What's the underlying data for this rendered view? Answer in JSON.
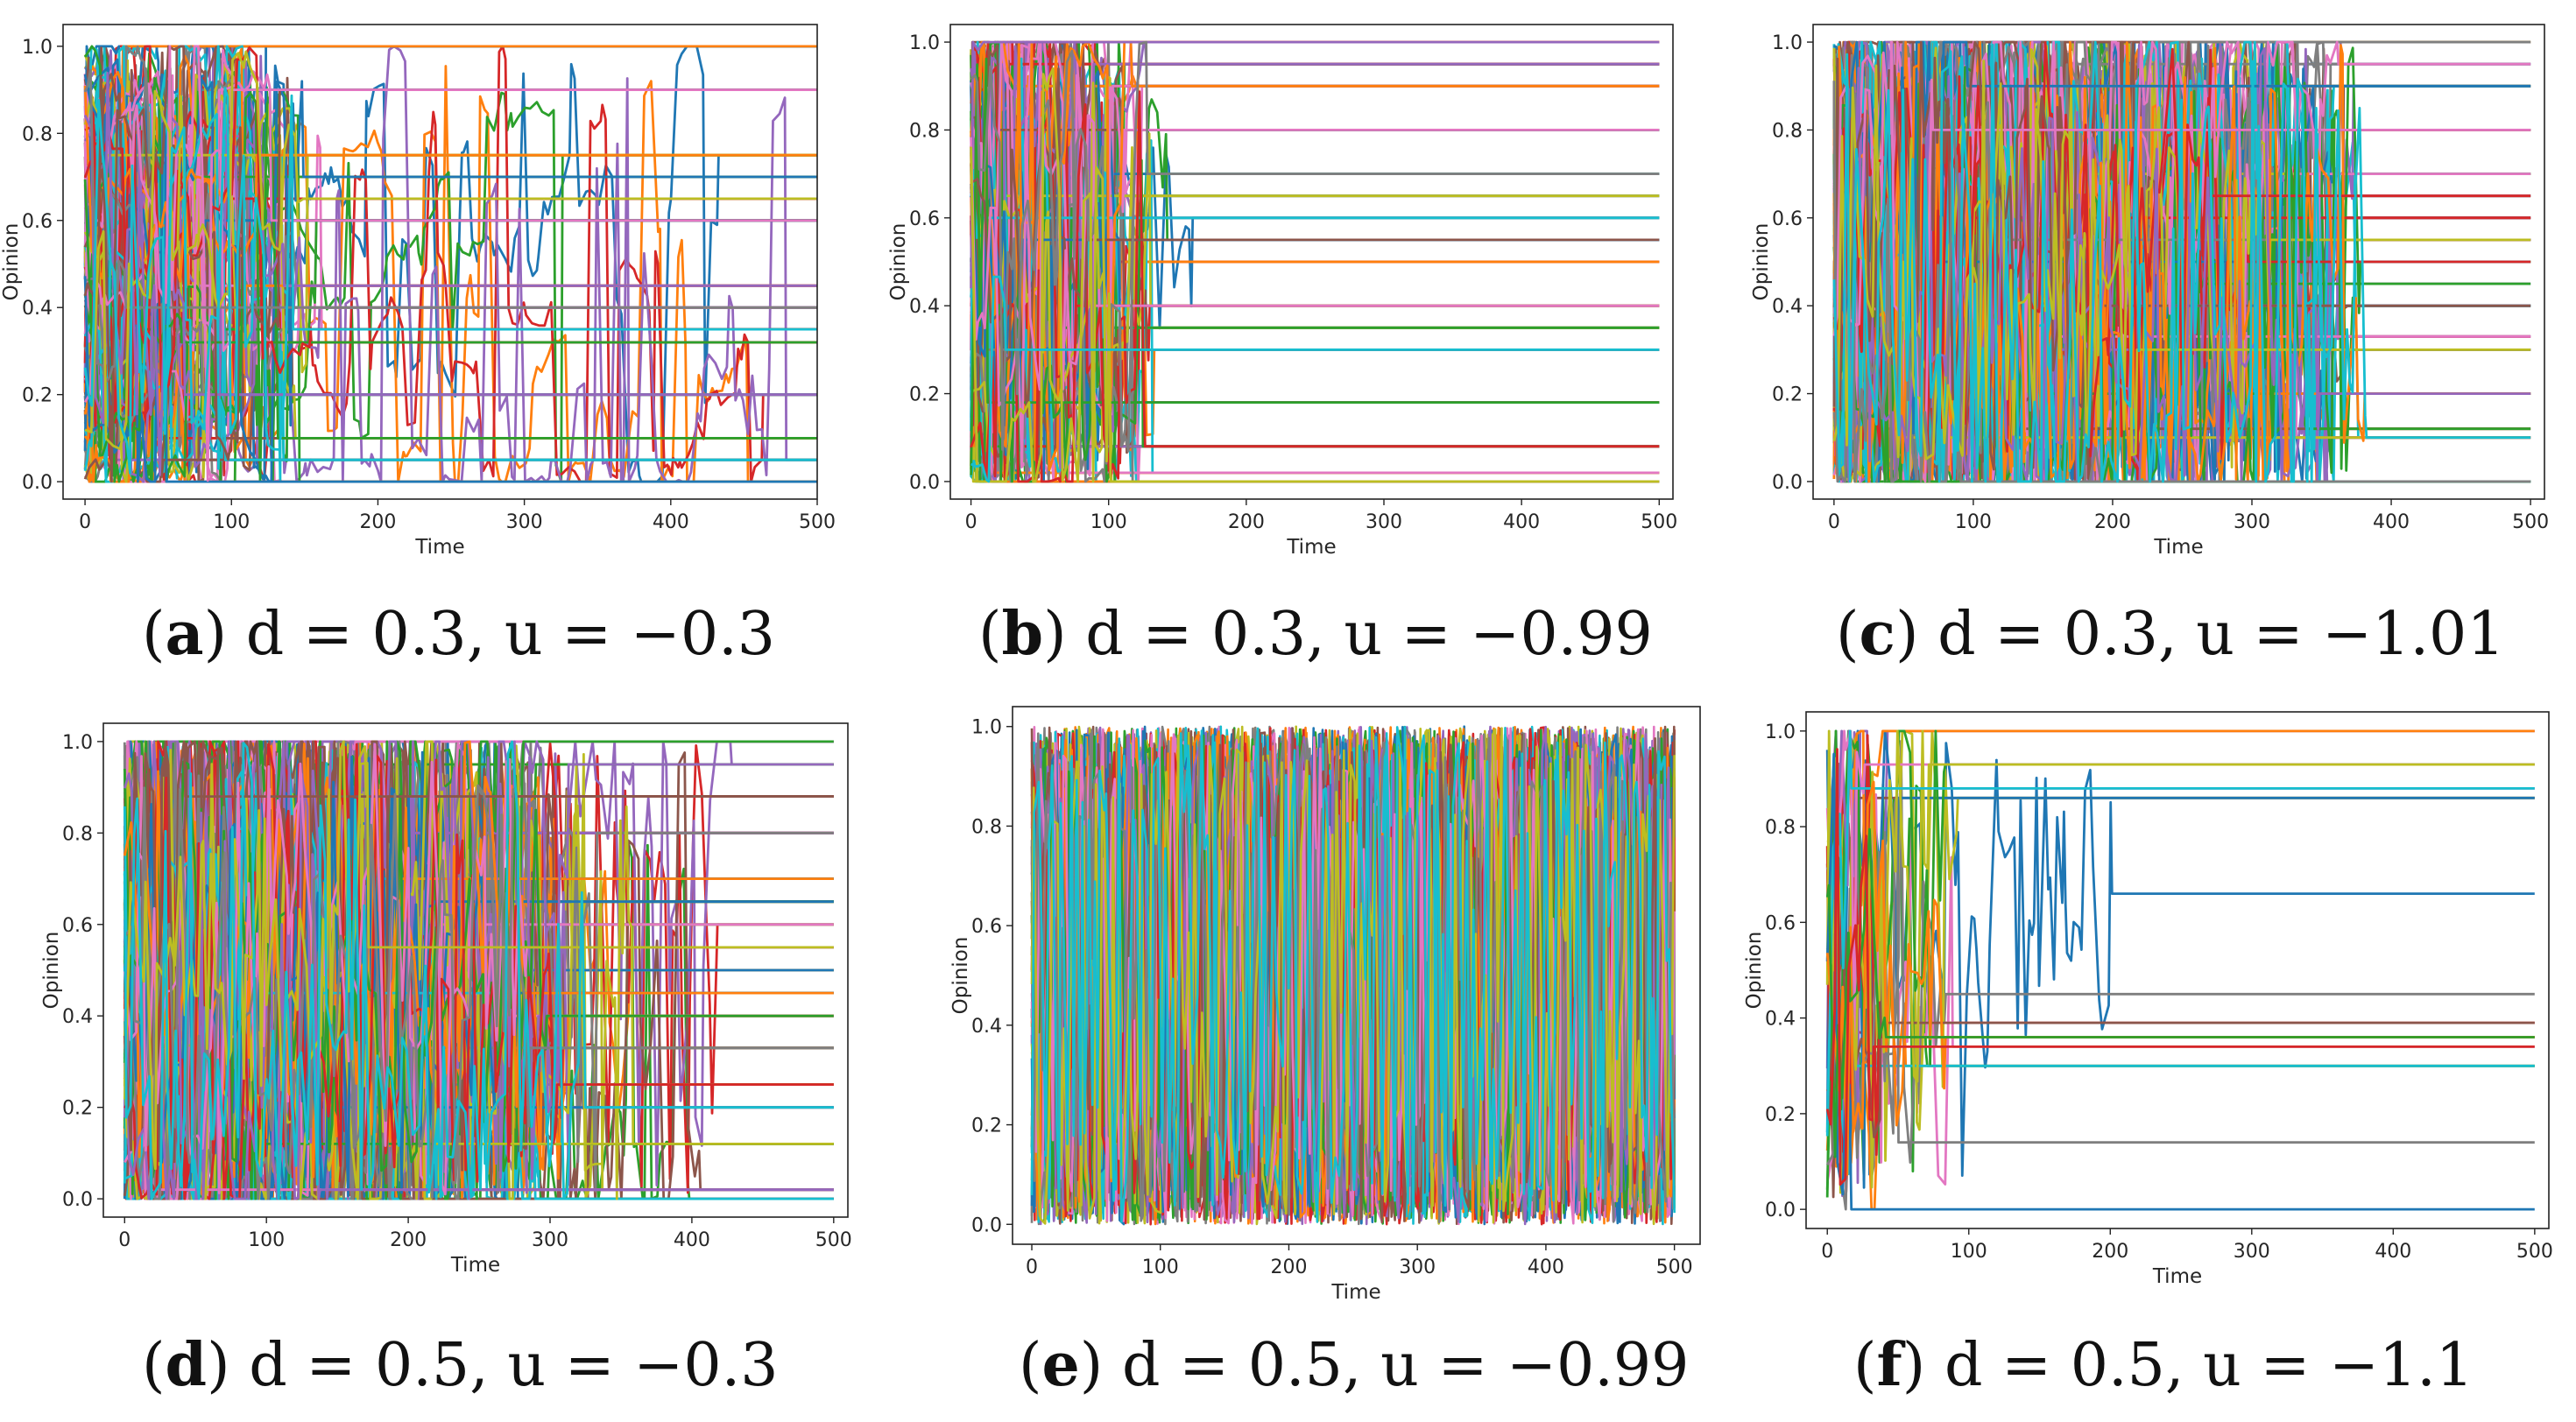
{
  "figure": {
    "panels_note": "six opinion-dynamics simulation panels"
  },
  "chart_data": [
    {
      "id": "a",
      "type": "line",
      "letter": "a",
      "caption_text": "d = 0.3, u = −0.3",
      "d": 0.3,
      "u": -0.3,
      "xlabel": "Time",
      "ylabel": "Opinion",
      "xlim": [
        -15,
        500
      ],
      "ylim": [
        -0.04,
        1.05
      ],
      "xticks": [
        "0",
        "100",
        "200",
        "300",
        "400",
        "500"
      ],
      "yticks": [
        "0.0",
        "0.2",
        "0.4",
        "0.6",
        "0.8",
        "1.0"
      ],
      "xtick_values": [
        0,
        100,
        200,
        300,
        400,
        500
      ],
      "ytick_values": [
        0.0,
        0.2,
        0.4,
        0.6,
        0.8,
        1.0
      ],
      "agents": 120,
      "settle_time": 160,
      "volatility": 0.35,
      "clusters": [
        0.0,
        0.05,
        0.1,
        0.2,
        0.32,
        0.35,
        0.4,
        0.45,
        0.6,
        0.65,
        0.7,
        0.75,
        0.9,
        1.0
      ],
      "late_movers": 5,
      "late_end": 500
    },
    {
      "id": "b",
      "type": "line",
      "letter": "b",
      "caption_text": "d = 0.3, u = −0.99",
      "d": 0.3,
      "u": -0.99,
      "xlabel": "Time",
      "ylabel": "Opinion",
      "xlim": [
        -15,
        510
      ],
      "ylim": [
        -0.04,
        1.04
      ],
      "xticks": [
        "0",
        "100",
        "200",
        "300",
        "400",
        "500"
      ],
      "yticks": [
        "0.0",
        "0.2",
        "0.4",
        "0.6",
        "0.8",
        "1.0"
      ],
      "xtick_values": [
        0,
        100,
        200,
        300,
        400,
        500
      ],
      "ytick_values": [
        0.0,
        0.2,
        0.4,
        0.6,
        0.8,
        1.0
      ],
      "agents": 110,
      "settle_time": 130,
      "volatility": 0.6,
      "clusters": [
        0.0,
        0.02,
        0.08,
        0.18,
        0.3,
        0.35,
        0.4,
        0.5,
        0.55,
        0.6,
        0.65,
        0.7,
        0.8,
        0.9,
        0.95,
        1.0
      ],
      "late_movers": 4,
      "late_end": 160
    },
    {
      "id": "c",
      "type": "line",
      "letter": "c",
      "caption_text": "d = 0.3, u = −1.01",
      "d": 0.3,
      "u": -1.01,
      "xlabel": "Time",
      "ylabel": "Opinion",
      "xlim": [
        -15,
        510
      ],
      "ylim": [
        -0.04,
        1.04
      ],
      "xticks": [
        "0",
        "100",
        "200",
        "300",
        "400",
        "500"
      ],
      "yticks": [
        "0.0",
        "0.2",
        "0.4",
        "0.6",
        "0.8",
        "1.0"
      ],
      "xtick_values": [
        0,
        100,
        200,
        300,
        400,
        500
      ],
      "ytick_values": [
        0.0,
        0.2,
        0.4,
        0.6,
        0.8,
        1.0
      ],
      "agents": 130,
      "settle_time": 380,
      "volatility": 0.85,
      "clusters": [
        0.0,
        0.1,
        0.12,
        0.2,
        0.3,
        0.33,
        0.4,
        0.45,
        0.5,
        0.55,
        0.6,
        0.65,
        0.7,
        0.8,
        0.9,
        0.95,
        1.0
      ],
      "late_movers": 6,
      "late_end": 460
    },
    {
      "id": "d",
      "type": "line",
      "letter": "d",
      "caption_text": "d = 0.5, u = −0.3",
      "d": 0.5,
      "u": -0.3,
      "xlabel": "Time",
      "ylabel": "Opinion",
      "xlim": [
        -15,
        510
      ],
      "ylim": [
        -0.04,
        1.04
      ],
      "xticks": [
        "0",
        "100",
        "200",
        "300",
        "400",
        "500"
      ],
      "yticks": [
        "0.0",
        "0.2",
        "0.4",
        "0.6",
        "0.8",
        "1.0"
      ],
      "xtick_values": [
        0,
        100,
        200,
        300,
        400,
        500
      ],
      "ytick_values": [
        0.0,
        0.2,
        0.4,
        0.6,
        0.8,
        1.0
      ],
      "agents": 130,
      "settle_time": 360,
      "volatility": 0.85,
      "clusters": [
        0.0,
        0.02,
        0.12,
        0.2,
        0.25,
        0.33,
        0.4,
        0.45,
        0.5,
        0.55,
        0.6,
        0.65,
        0.7,
        0.8,
        0.88,
        0.95,
        1.0
      ],
      "late_movers": 6,
      "late_end": 460
    },
    {
      "id": "e",
      "type": "line",
      "letter": "e",
      "caption_text": "d = 0.5, u = −0.99",
      "d": 0.5,
      "u": -0.99,
      "xlabel": "Time",
      "ylabel": "Opinion",
      "xlim": [
        -15,
        520
      ],
      "ylim": [
        -0.04,
        1.04
      ],
      "xticks": [
        "0",
        "100",
        "200",
        "300",
        "400",
        "500"
      ],
      "yticks": [
        "0.0",
        "0.2",
        "0.4",
        "0.6",
        "0.8",
        "1.0"
      ],
      "xtick_values": [
        0,
        100,
        200,
        300,
        400,
        500
      ],
      "ytick_values": [
        0.0,
        0.2,
        0.4,
        0.6,
        0.8,
        1.0
      ],
      "agents": 60,
      "settle_time": 500,
      "volatility": 1.0,
      "clusters": [
        0.0,
        1.0
      ],
      "late_movers": 0,
      "late_end": 500,
      "chaotic": true
    },
    {
      "id": "f",
      "type": "line",
      "letter": "f",
      "caption_text": "d = 0.5, u = −1.1",
      "d": 0.5,
      "u": -1.1,
      "xlabel": "Time",
      "ylabel": "Opinion",
      "xlim": [
        -15,
        510
      ],
      "ylim": [
        -0.04,
        1.04
      ],
      "xticks": [
        "0",
        "100",
        "200",
        "300",
        "400",
        "500"
      ],
      "yticks": [
        "0.0",
        "0.2",
        "0.4",
        "0.6",
        "0.8",
        "1.0"
      ],
      "xtick_values": [
        0,
        100,
        200,
        300,
        400,
        500
      ],
      "ytick_values": [
        0.0,
        0.2,
        0.4,
        0.6,
        0.8,
        1.0
      ],
      "agents": 24,
      "settle_time": 90,
      "volatility": 0.9,
      "clusters": [
        0.0,
        0.08,
        0.14,
        0.3,
        0.34,
        0.36,
        0.39,
        0.45,
        0.66,
        0.86,
        0.88,
        0.93,
        1.0
      ],
      "late_movers": 1,
      "late_end": 260
    }
  ],
  "palette": [
    "#1f77b4",
    "#ff7f0e",
    "#2ca02c",
    "#d62728",
    "#9467bd",
    "#8c564b",
    "#e377c2",
    "#7f7f7f",
    "#bcbd22",
    "#17becf"
  ]
}
